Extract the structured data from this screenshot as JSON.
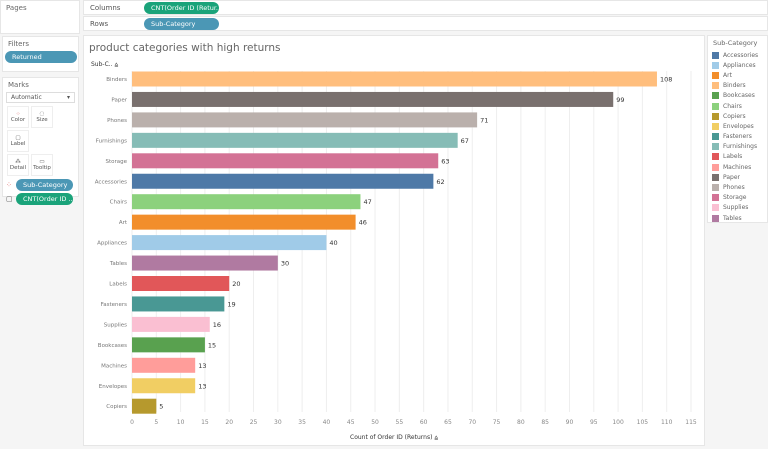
{
  "pages": {
    "title": "Pages"
  },
  "shelves": {
    "columns_label": "Columns",
    "columns_pill": "CNT(Order ID (Retur..",
    "rows_label": "Rows",
    "rows_pill": "Sub-Category"
  },
  "filters": {
    "title": "Filters",
    "pill": "Returned"
  },
  "marks": {
    "title": "Marks",
    "type": "Automatic",
    "buttons": [
      "Color",
      "Size",
      "Label",
      "Detail",
      "Tooltip"
    ],
    "pills": [
      "Sub-Category",
      "CNT(Order ID .."
    ]
  },
  "legend": {
    "title": "Sub-Category",
    "items": [
      {
        "label": "Accessories",
        "color": "#4e79a7"
      },
      {
        "label": "Appliances",
        "color": "#a0cbe8"
      },
      {
        "label": "Art",
        "color": "#f28e2b"
      },
      {
        "label": "Binders",
        "color": "#ffbe7d"
      },
      {
        "label": "Bookcases",
        "color": "#59a14f"
      },
      {
        "label": "Chairs",
        "color": "#8cd17d"
      },
      {
        "label": "Copiers",
        "color": "#b6992d"
      },
      {
        "label": "Envelopes",
        "color": "#f1ce63"
      },
      {
        "label": "Fasteners",
        "color": "#499894"
      },
      {
        "label": "Furnishings",
        "color": "#86bcb6"
      },
      {
        "label": "Labels",
        "color": "#e15759"
      },
      {
        "label": "Machines",
        "color": "#ff9d9a"
      },
      {
        "label": "Paper",
        "color": "#79706e"
      },
      {
        "label": "Phones",
        "color": "#bab0ac"
      },
      {
        "label": "Storage",
        "color": "#d37295"
      },
      {
        "label": "Supplies",
        "color": "#fabfd2"
      },
      {
        "label": "Tables",
        "color": "#b07aa1"
      }
    ]
  },
  "chart_data": {
    "type": "bar",
    "orientation": "horizontal",
    "title": "product categories with high returns",
    "ylabel": "Sub-C..",
    "xlabel": "Count of Order ID (Returns)",
    "categories": [
      "Binders",
      "Paper",
      "Phones",
      "Furnishings",
      "Storage",
      "Accessories",
      "Chairs",
      "Art",
      "Appliances",
      "Tables",
      "Labels",
      "Fasteners",
      "Supplies",
      "Bookcases",
      "Machines",
      "Envelopes",
      "Copiers"
    ],
    "values": [
      108,
      99,
      71,
      67,
      63,
      62,
      47,
      46,
      40,
      30,
      20,
      19,
      16,
      15,
      13,
      13,
      5
    ],
    "xlim": [
      0,
      115
    ],
    "xticks": [
      0,
      5,
      10,
      15,
      20,
      25,
      30,
      35,
      40,
      45,
      50,
      55,
      60,
      65,
      70,
      75,
      80,
      85,
      90,
      95,
      100,
      105,
      110,
      115
    ],
    "grid": true,
    "legend": "right",
    "sorted": "descending"
  }
}
